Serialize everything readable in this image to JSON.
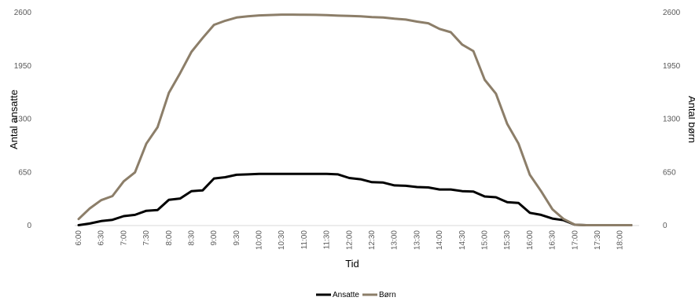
{
  "chart_data": {
    "type": "line",
    "xlabel": "Tid",
    "ylabel_left": "Antal ansatte",
    "ylabel_right": "Antal børn",
    "y_ticks_left": [
      "0",
      "650",
      "1300",
      "1950",
      "2600"
    ],
    "y_ticks_right": [
      "0",
      "650",
      "1300",
      "1950",
      "2600"
    ],
    "ylim": [
      0,
      2600
    ],
    "x_tick_labels": [
      "6:00",
      "6:30",
      "7:00",
      "7:30",
      "8:00",
      "8:30",
      "9:00",
      "9:30",
      "10:00",
      "10:30",
      "11:00",
      "11:30",
      "12:00",
      "12:30",
      "13:00",
      "13:30",
      "14:00",
      "14:30",
      "15:00",
      "15:30",
      "16:00",
      "16:30",
      "17:00",
      "17:30",
      "18:00"
    ],
    "x": [
      "6:00",
      "6:15",
      "6:30",
      "6:45",
      "7:00",
      "7:15",
      "7:30",
      "7:45",
      "8:00",
      "8:15",
      "8:30",
      "8:45",
      "9:00",
      "9:15",
      "9:30",
      "9:45",
      "10:00",
      "10:15",
      "10:30",
      "10:45",
      "11:00",
      "11:15",
      "11:30",
      "11:45",
      "12:00",
      "12:15",
      "12:30",
      "12:45",
      "13:00",
      "13:15",
      "13:30",
      "13:45",
      "14:00",
      "14:15",
      "14:30",
      "14:45",
      "15:00",
      "15:15",
      "15:30",
      "15:45",
      "16:00",
      "16:15",
      "16:30",
      "16:45",
      "17:00",
      "17:15",
      "17:30",
      "17:45",
      "18:00",
      "18:15"
    ],
    "series": [
      {
        "name": "Ansatte",
        "color": "#000000",
        "axis": "left",
        "values": [
          5,
          25,
          55,
          70,
          115,
          130,
          180,
          190,
          315,
          330,
          420,
          430,
          575,
          590,
          620,
          625,
          630,
          630,
          630,
          630,
          630,
          630,
          630,
          625,
          580,
          565,
          530,
          525,
          490,
          485,
          470,
          465,
          440,
          440,
          420,
          415,
          355,
          345,
          285,
          275,
          155,
          130,
          85,
          65,
          10,
          5,
          5,
          5,
          5,
          5
        ]
      },
      {
        "name": "Børn",
        "color": "#8c7e69",
        "axis": "right",
        "values": [
          80,
          210,
          310,
          360,
          540,
          650,
          1000,
          1200,
          1620,
          1860,
          2120,
          2290,
          2450,
          2500,
          2540,
          2555,
          2565,
          2570,
          2575,
          2575,
          2573,
          2572,
          2568,
          2563,
          2560,
          2555,
          2545,
          2540,
          2525,
          2515,
          2490,
          2470,
          2400,
          2360,
          2210,
          2130,
          1780,
          1610,
          1240,
          1000,
          620,
          420,
          200,
          80,
          10,
          5,
          5,
          5,
          5,
          5
        ]
      }
    ],
    "legend_position": "bottom-center",
    "grid": false
  }
}
